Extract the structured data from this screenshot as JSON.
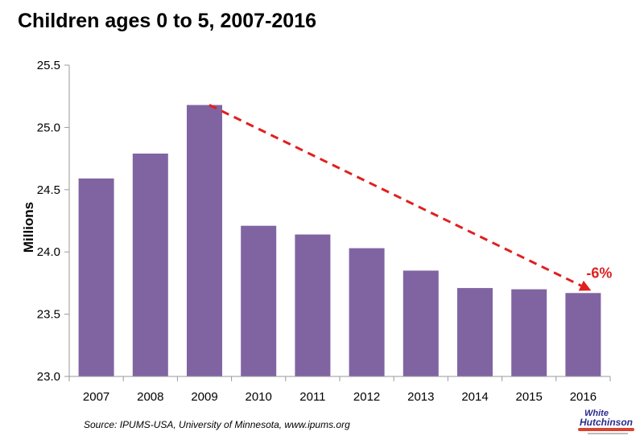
{
  "title": "Children ages 0 to 5, 2007-2016",
  "source": "Source: IPUMS-USA, University  of Minnesota, www.ipums.org",
  "logo": {
    "line1": "White",
    "line2": "Hutchinson"
  },
  "colors": {
    "bar": "#8064a2",
    "arrow": "#e02020",
    "axis": "#9a9a9a"
  },
  "chart_data": {
    "type": "bar",
    "title": "Children ages 0 to 5, 2007-2016",
    "xlabel": "",
    "ylabel": "Millions",
    "ylim": [
      23.0,
      25.5
    ],
    "yticks": [
      23.0,
      23.5,
      24.0,
      24.5,
      25.0,
      25.5
    ],
    "ytick_labels": [
      "23.0",
      "23.5",
      "24.0",
      "24.5",
      "25.0",
      "25.5"
    ],
    "categories": [
      "2007",
      "2008",
      "2009",
      "2010",
      "2011",
      "2012",
      "2013",
      "2014",
      "2015",
      "2016"
    ],
    "values": [
      24.59,
      24.79,
      25.18,
      24.21,
      24.14,
      24.03,
      23.85,
      23.71,
      23.7,
      23.67
    ],
    "grid": false,
    "annotation": {
      "text": "-6%",
      "from_category": "2009",
      "to_category": "2016",
      "style": "dashed-arrow"
    }
  }
}
